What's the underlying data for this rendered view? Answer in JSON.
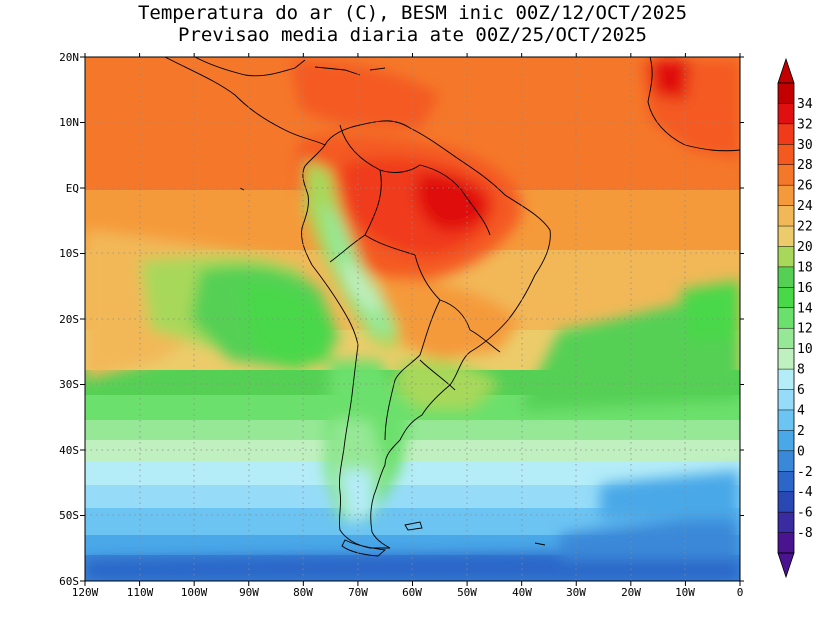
{
  "title": {
    "line1": "Temperatura do ar (C), BESM inic 00Z/12/OCT/2025",
    "line2": "Previsao media diaria ate 00Z/25/OCT/2025"
  },
  "axes": {
    "lat_labels": [
      "20N",
      "10N",
      "EQ",
      "10S",
      "20S",
      "30S",
      "40S",
      "50S",
      "60S"
    ],
    "lon_labels": [
      "120W",
      "110W",
      "100W",
      "90W",
      "80W",
      "70W",
      "60W",
      "50W",
      "40W",
      "30W",
      "20W",
      "10W",
      "0"
    ],
    "lat_range": [
      -60,
      20
    ],
    "lon_range": [
      -120,
      0
    ],
    "grid": "dotted"
  },
  "colorbar": {
    "labels": [
      "34",
      "32",
      "30",
      "28",
      "26",
      "24",
      "22",
      "20",
      "18",
      "16",
      "14",
      "12",
      "10",
      "8",
      "6",
      "4",
      "2",
      "0",
      "-2",
      "-4",
      "-6",
      "-8"
    ],
    "colors": [
      "#c20000",
      "#e01010",
      "#f03a1a",
      "#f45a20",
      "#f5782a",
      "#f59a3a",
      "#f2b858",
      "#eccc6a",
      "#a8d85a",
      "#55d055",
      "#48d848",
      "#6ce06c",
      "#96e896",
      "#c0f0c0",
      "#b4ecf8",
      "#96dcf8",
      "#6cc4f2",
      "#4aa8e8",
      "#3a88d8",
      "#2c66c8",
      "#2a48b4",
      "#3a2ca0",
      "#4a1490"
    ],
    "extends": "both"
  },
  "map_fields": {
    "variable": "air temperature (C)",
    "warm_core": "northern Brazil / Amazon 30-32 C",
    "cold_south": "Southern Ocean -2 to 2 C",
    "andes_cool": "Andes 10-16 C"
  }
}
